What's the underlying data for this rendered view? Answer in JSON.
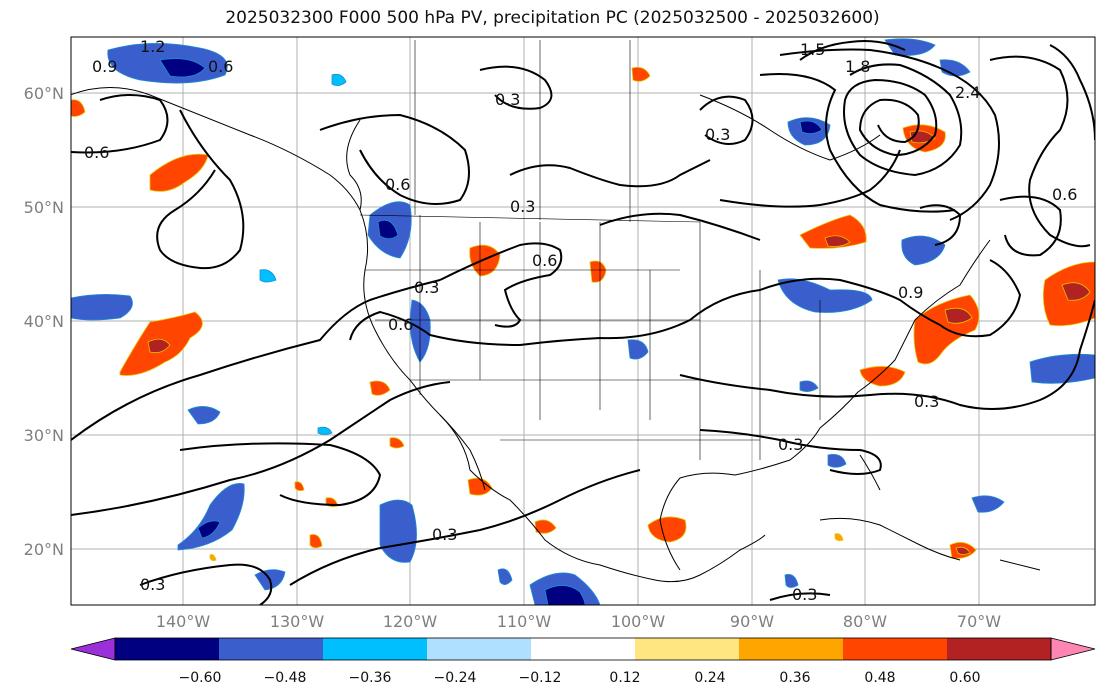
{
  "title": "2025032300 F000 500 hPa PV, precipitation PC (2025032500 - 2025032600)",
  "lat_labels": [
    "60°N",
    "50°N",
    "40°N",
    "30°N",
    "20°N"
  ],
  "lon_labels": [
    "140°W",
    "130°W",
    "120°W",
    "110°W",
    "100°W",
    "90°W",
    "80°W",
    "70°W"
  ],
  "colorbar": {
    "tick_labels": [
      "−0.60",
      "−0.48",
      "−0.36",
      "−0.24",
      "−0.12",
      "0.12",
      "0.24",
      "0.36",
      "0.48",
      "0.60"
    ],
    "colors": [
      "#9b30d9",
      "#000080",
      "#3a5fcd",
      "#00bfff",
      "#b0e0ff",
      "#ffffff",
      "#ffe680",
      "#ffa500",
      "#ff4500",
      "#b22222",
      "#ff85b3"
    ]
  },
  "contour_labels": [
    "1.2",
    "0.6",
    "0.9",
    "0.3",
    "0.6",
    "0.6",
    "0.3",
    "0.6",
    "0.3",
    "0.6",
    "0.3",
    "0.3",
    "0.3",
    "0.3",
    "0.3",
    "0.3",
    "1.5",
    "1.8",
    "2.4",
    "0.9",
    "0.6"
  ]
}
